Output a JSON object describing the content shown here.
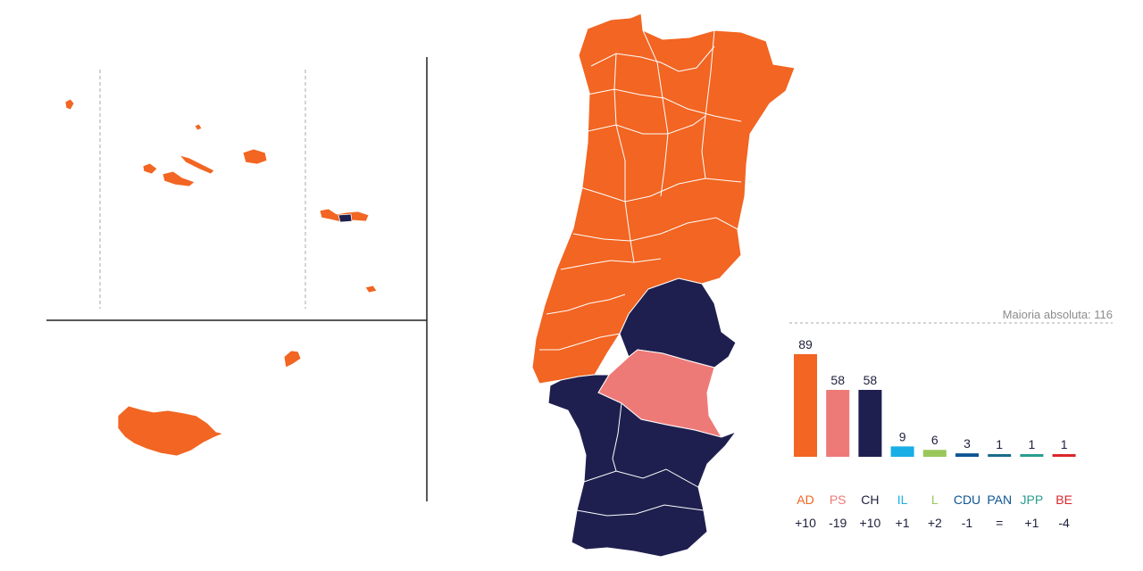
{
  "chart_data": {
    "type": "bar",
    "majority_label": "Maioria absoluta: 116",
    "majority_value": 116,
    "categories": [
      "AD",
      "PS",
      "CH",
      "IL",
      "L",
      "CDU",
      "PAN",
      "JPP",
      "BE"
    ],
    "values": [
      89,
      58,
      58,
      9,
      6,
      3,
      1,
      1,
      1
    ],
    "value_labels": [
      "89",
      "58",
      "58",
      "9",
      "6",
      "3",
      "1",
      "1",
      "1"
    ],
    "changes": [
      "+10",
      "-19",
      "+10",
      "+1",
      "+2",
      "-1",
      "=",
      "+1",
      "-4"
    ],
    "colors": [
      "#f26522",
      "#ee7a78",
      "#1f1f4f",
      "#19aee6",
      "#9ac75b",
      "#0d5494",
      "#1a6b8a",
      "#2a9d8f",
      "#d9262b"
    ],
    "label_colors": [
      "#f26522",
      "#ee7a78",
      "#1e1f3d",
      "#19aee6",
      "#9ac75b",
      "#0d5494",
      "#0d5494",
      "#2a9d8f",
      "#d9262b"
    ],
    "ylim": [
      0,
      116
    ]
  },
  "map": {
    "region_colors": {
      "AD": "#f26522",
      "PS": "#ee7a78",
      "CH": "#1f1f4f"
    }
  }
}
